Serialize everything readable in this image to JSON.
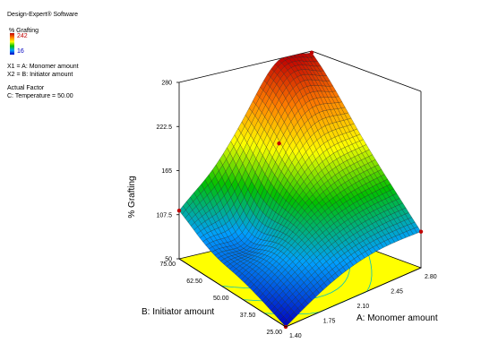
{
  "software": "Design-Expert® Software",
  "response": {
    "name": "% Grafting",
    "max_label": "242",
    "min_label": "16",
    "max_color": "#c00000",
    "min_color": "#0000c0"
  },
  "factors": {
    "x1": "X1 = A: Monomer amount",
    "x2": "X2 = B: Initiator amount"
  },
  "actual_factor": {
    "heading": "Actual Factor",
    "value": "C: Temperature = 50.00"
  },
  "chart_data": {
    "type": "surface",
    "zlabel": "% Grafting",
    "xlabel": "A: Monomer amount",
    "ylabel": "B: Initiator amount",
    "z_ticks": [
      "50",
      "107.5",
      "165",
      "222.5",
      "280"
    ],
    "x_ticks": [
      "1.40",
      "1.75",
      "2.10",
      "2.45",
      "2.80"
    ],
    "y_ticks": [
      "25.00",
      "37.50",
      "50.00",
      "62.50",
      "75.00"
    ],
    "zlim": [
      50,
      280
    ],
    "xlim": [
      1.4,
      2.8
    ],
    "ylim": [
      25,
      75
    ],
    "surface_corners": [
      {
        "A": 1.4,
        "B": 75,
        "z": 115
      },
      {
        "A": 2.8,
        "B": 75,
        "z": 268
      },
      {
        "A": 2.8,
        "B": 25,
        "z": 97
      },
      {
        "A": 1.4,
        "B": 25,
        "z": 50
      }
    ],
    "surface_peak": {
      "A": 2.45,
      "B": 70,
      "z": 270
    },
    "colormap": [
      "#0000c0",
      "#00a0ff",
      "#00c000",
      "#ffff00",
      "#ff8000",
      "#c00000"
    ],
    "floor_color": "#ffff00",
    "contour_color": "#00c0c0"
  }
}
